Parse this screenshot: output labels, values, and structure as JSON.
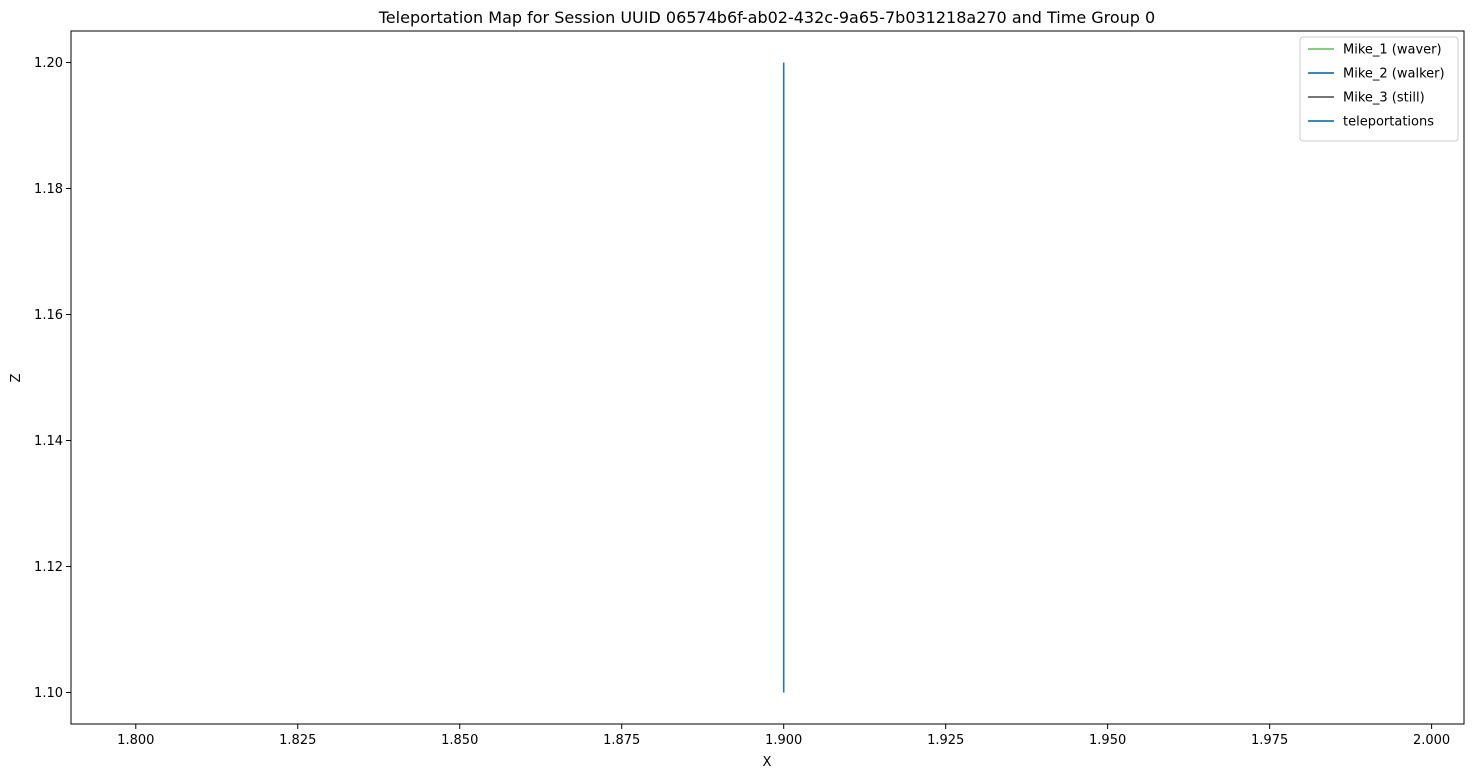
{
  "chart_data": {
    "type": "line",
    "title": "Teleportation Map for Session UUID 06574b6f-ab02-432c-9a65-7b031218a270 and Time Group 0",
    "xlabel": "X",
    "ylabel": "Z",
    "xlim": [
      1.79,
      2.005
    ],
    "ylim": [
      1.095,
      1.205
    ],
    "xticks": [
      1.8,
      1.825,
      1.85,
      1.875,
      1.9,
      1.925,
      1.95,
      1.975,
      2.0
    ],
    "xtick_labels": [
      "1.800",
      "1.825",
      "1.850",
      "1.875",
      "1.900",
      "1.925",
      "1.950",
      "1.975",
      "2.000"
    ],
    "yticks": [
      1.1,
      1.12,
      1.14,
      1.16,
      1.18,
      1.2
    ],
    "ytick_labels": [
      "1.10",
      "1.12",
      "1.14",
      "1.16",
      "1.18",
      "1.20"
    ],
    "grid": false,
    "legend_position": "top-right",
    "series": [
      {
        "name": "Mike_1 (waver)",
        "color": "#74c476",
        "x": [],
        "y": []
      },
      {
        "name": "Mike_2 (walker)",
        "color": "#2171b5",
        "x": [],
        "y": []
      },
      {
        "name": "Mike_3 (still)",
        "color": "#636363",
        "x": [],
        "y": []
      },
      {
        "name": "teleportations",
        "color": "#1f77b4",
        "x": [
          1.9,
          1.9
        ],
        "y": [
          1.1,
          1.2
        ]
      }
    ]
  }
}
